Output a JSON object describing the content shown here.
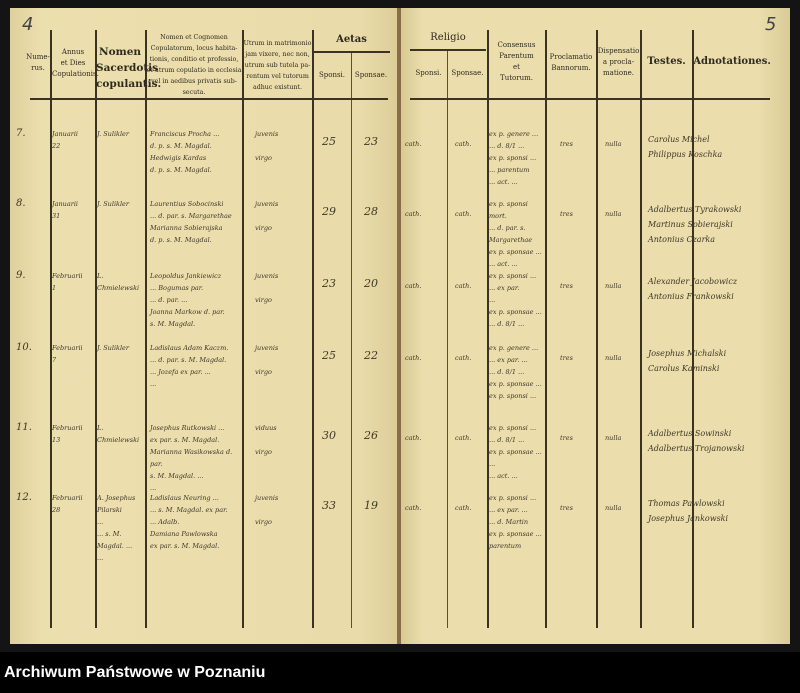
{
  "page_numbers": {
    "left": "4",
    "right": "5"
  },
  "headers": {
    "numerus": "Nume-\nrus.",
    "annus": "Annus\net Dies\nCopulationis.",
    "sacerdos": "Nomen\nSacerdotis\ncopulantis.",
    "nomen": "Nomen et Cognomen\nCopulatorum, locus habita-\ntionis, conditio et professio,\net utrum copulatio in ecclesia\nvel in aedibus privatis sub-\nsecuta.",
    "utrum": "Utrum in matrimonio\njam vixere, nec non,\nutrum sub tutela pa-\nrentum vel tutorum\nadhuc existunt.",
    "aetas": "Aetas",
    "aetas_sponsi": "Sponsi.",
    "aetas_sponsae": "Sponsae.",
    "religio": "Religio",
    "religio_sponsi": "Sponsi.",
    "religio_sponsae": "Sponsae.",
    "consensus": "Consensus\nParentum\net\nTutorum.",
    "proclamatio": "Proclamatio\nBannorum.",
    "dispensatio": "Dispensatio\na procla-\nmatione.",
    "testes": "Testes.",
    "adnotationes": "Adnotationes."
  },
  "rows": [
    {
      "num": "7.",
      "date": "Januarii\n22",
      "priest": "J. Sulikler",
      "names": "Franciscus Procha ...\nd. p. s. M. Magdal.\nHedwigis Kardas\nd. p. s. M. Magdal.",
      "status": "juvenis\n\nvirgo",
      "age_sponsi": "25",
      "age_sponsae": "23",
      "rel_sponsi": "cath.",
      "rel_sponsae": "cath.",
      "consensus": "ex p. genere ...\n... d. 8/1 ...\nex p. sponsi ...\n... parentum\n... act. ...",
      "proclamatio": "tres",
      "dispensatio": "nulla",
      "testes": "Carolus Michel\nPhilippus Koschka"
    },
    {
      "num": "8.",
      "date": "Januarii\n31",
      "priest": "J. Sulikler",
      "names": "Laurentius Sobocinski\n... d. par. s. Margarethae\nMarianna Sobierajska\nd. p. s. M. Magdal.",
      "status": "juvenis\n\nvirgo",
      "age_sponsi": "29",
      "age_sponsae": "28",
      "rel_sponsi": "cath.",
      "rel_sponsae": "cath.",
      "consensus": "ex p. sponsi mort.\n... d. par. s.\nMargarethae\nex p. sponsae ...\n... act. ...",
      "proclamatio": "tres",
      "dispensatio": "nulla",
      "testes": "Adalbertus Tyrakowski\nMartinus Sobierajski\nAntonius Czarka"
    },
    {
      "num": "9.",
      "date": "Februarii\n1",
      "priest": "L. Chmielewski",
      "names": "Leopoldus Jankiewicz\n... Bogumas par.\n... d. par. ...\nJoanna Markow d. par.\ns. M. Magdal.",
      "status": "juvenis\n\nvirgo",
      "age_sponsi": "23",
      "age_sponsae": "20",
      "rel_sponsi": "cath.",
      "rel_sponsae": "cath.",
      "consensus": "ex p. sponsi ...\n... ex par.\n...\nex p. sponsae ...\n... d. 8/1 ...",
      "proclamatio": "tres",
      "dispensatio": "nulla",
      "testes": "Alexander Jacobowicz\nAntonius Frankowski"
    },
    {
      "num": "10.",
      "date": "Februarii\n7",
      "priest": "J. Sulikler",
      "names": "Ladislaus Adam Kaczm.\n... d. par. s. M. Magdal.\n... Jozefa ex par. ...\n...",
      "status": "juvenis\n\nvirgo",
      "age_sponsi": "25",
      "age_sponsae": "22",
      "rel_sponsi": "cath.",
      "rel_sponsae": "cath.",
      "consensus": "ex p. genere ...\n... ex par. ...\n... d. 8/1 ...\nex p. sponsae ...\nex p. sponsi ...",
      "proclamatio": "tres",
      "dispensatio": "nulla",
      "testes": "Josephus Michalski\nCarolus Kaminski"
    },
    {
      "num": "11.",
      "date": "Februarii\n13",
      "priest": "L. Chmielewski",
      "names": "Josephus Rutkowski ...\nex par. s. M. Magdal.\nMarianna Wasikowska d. par.\ns. M. Magdal. ...\n...",
      "status": "viduus\n\nvirgo",
      "age_sponsi": "30",
      "age_sponsae": "26",
      "rel_sponsi": "cath.",
      "rel_sponsae": "cath.",
      "consensus": "ex p. sponsi ...\n... d. 8/1 ...\nex p. sponsae ...\n...\n... act. ...",
      "proclamatio": "tres",
      "dispensatio": "nulla",
      "testes": "Adalbertus Sowinski\nAdalbertus Trojanowski"
    },
    {
      "num": "12.",
      "date": "Februarii\n28",
      "priest": "A. Josephus Pilarski\n...\n... s. M. Magdal. ...\n...",
      "names": "Ladislaus Neuring ...\n... s. M. Magdal. ex par.\n... Adalb.\nDamiana Pawlowska\nex par. s. M. Magdal.",
      "status": "juvenis\n\nvirgo",
      "age_sponsi": "33",
      "age_sponsae": "19",
      "rel_sponsi": "cath.",
      "rel_sponsae": "cath.",
      "consensus": "ex p. sponsi ...\n... ex par. ...\n... d. Martin\nex p. sponsae ...\nparentum",
      "proclamatio": "tres",
      "dispensatio": "nulla",
      "testes": "Thomas Pawlowski\nJosephus Jankowski"
    }
  ],
  "footer": {
    "text": "Archiwum Państwowe w Poznaniu"
  }
}
